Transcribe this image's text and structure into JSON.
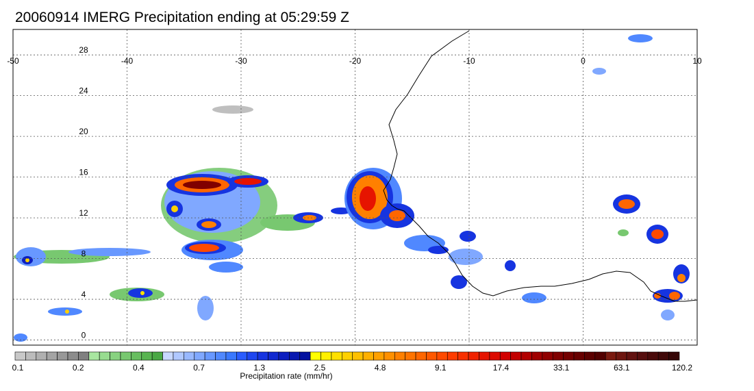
{
  "title": "20060914 IMERG Precipitation ending at 05:29:59 Z",
  "map": {
    "lon_ticks": [
      "-50",
      "-40",
      "-30",
      "-20",
      "-10",
      "0",
      "10"
    ],
    "lat_ticks": [
      "28",
      "24",
      "20",
      "16",
      "12",
      "8",
      "4",
      "0"
    ],
    "lon_range": [
      -50,
      10
    ],
    "lat_range": [
      -0.5,
      30.5
    ],
    "grid": true,
    "coastline_color": "#000000",
    "grid_color": "#555555"
  },
  "colorbar": {
    "title": "Precipitation rate (mm/hr)",
    "tick_labels": [
      "0.1",
      "0.2",
      "0.4",
      "0.7",
      "1.3",
      "2.5",
      "4.8",
      "9.1",
      "17.4",
      "33.1",
      "63.1",
      "120.2"
    ],
    "colors": [
      "#c8c8c8",
      "#bcbcbc",
      "#b0b0b0",
      "#a4a4a4",
      "#989898",
      "#8c8c8c",
      "#808080",
      "#a8e6a0",
      "#98dc90",
      "#88d280",
      "#78c870",
      "#68be60",
      "#58b450",
      "#4aa844",
      "#c8d8ff",
      "#b0c8ff",
      "#98b8ff",
      "#80a8ff",
      "#6898ff",
      "#5088ff",
      "#3a78ff",
      "#2a5cff",
      "#1e46f0",
      "#1634e0",
      "#1028d0",
      "#0c1ec0",
      "#0818b0",
      "#0412a0",
      "#ffff00",
      "#fff000",
      "#ffe000",
      "#ffd000",
      "#ffc000",
      "#ffb000",
      "#ffa000",
      "#ff9000",
      "#ff8000",
      "#ff7400",
      "#ff6600",
      "#ff5800",
      "#ff4a00",
      "#ff3c00",
      "#f83000",
      "#f02200",
      "#e61400",
      "#dc0a00",
      "#d20000",
      "#c20000",
      "#b20000",
      "#a00000",
      "#900000",
      "#800000",
      "#740000",
      "#680000",
      "#5c0000",
      "#520000",
      "#7a1a10",
      "#6e1610",
      "#621210",
      "#560e0e",
      "#4a0a0a",
      "#400808",
      "#360606"
    ]
  }
}
